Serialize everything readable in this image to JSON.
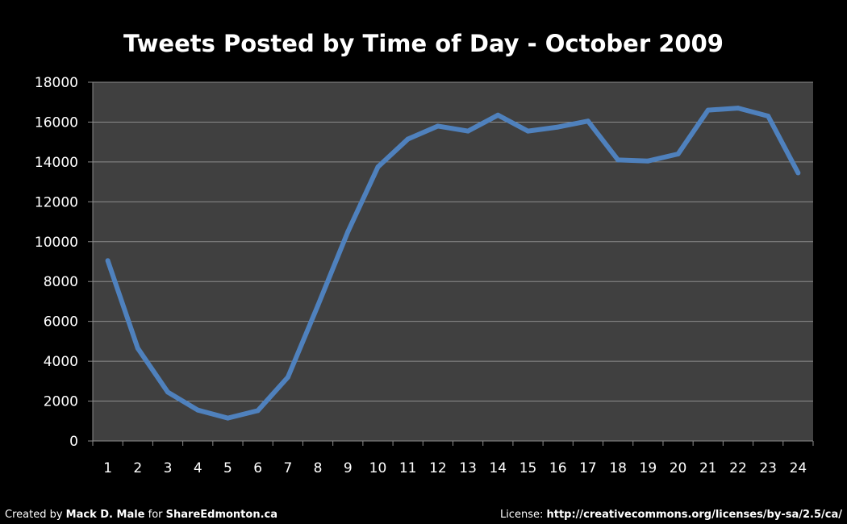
{
  "chart_data": {
    "type": "line",
    "title": "Tweets Posted by Time of Day - October 2009",
    "xlabel": "",
    "ylabel": "",
    "categories": [
      "1",
      "2",
      "3",
      "4",
      "5",
      "6",
      "7",
      "8",
      "9",
      "10",
      "11",
      "12",
      "13",
      "14",
      "15",
      "16",
      "17",
      "18",
      "19",
      "20",
      "21",
      "22",
      "23",
      "24"
    ],
    "series": [
      {
        "values": [
          9050,
          4650,
          2450,
          1550,
          1150,
          1520,
          3200,
          6800,
          10500,
          13750,
          15150,
          15800,
          15550,
          16350,
          15550,
          15750,
          16050,
          14100,
          14050,
          14400,
          16600,
          16700,
          16300,
          13450
        ],
        "color": "#4f81bd"
      }
    ],
    "ylim": [
      0,
      18000
    ],
    "yticks": [
      "0",
      "2000",
      "4000",
      "6000",
      "8000",
      "10000",
      "12000",
      "14000",
      "16000",
      "18000"
    ],
    "grid": true,
    "legend": "none",
    "colors": {
      "background": "#000000",
      "plot_area": "#404040",
      "gridline": "#8c8c8c",
      "text": "#ffffff"
    }
  },
  "footer": {
    "left_prefix": "Created by ",
    "author": "Mack D. Male",
    "for_text": " for ",
    "site": "ShareEdmonton.ca",
    "license_label": "License: ",
    "license_url": "http://creativecommons.org/licenses/by-sa/2.5/ca/"
  }
}
